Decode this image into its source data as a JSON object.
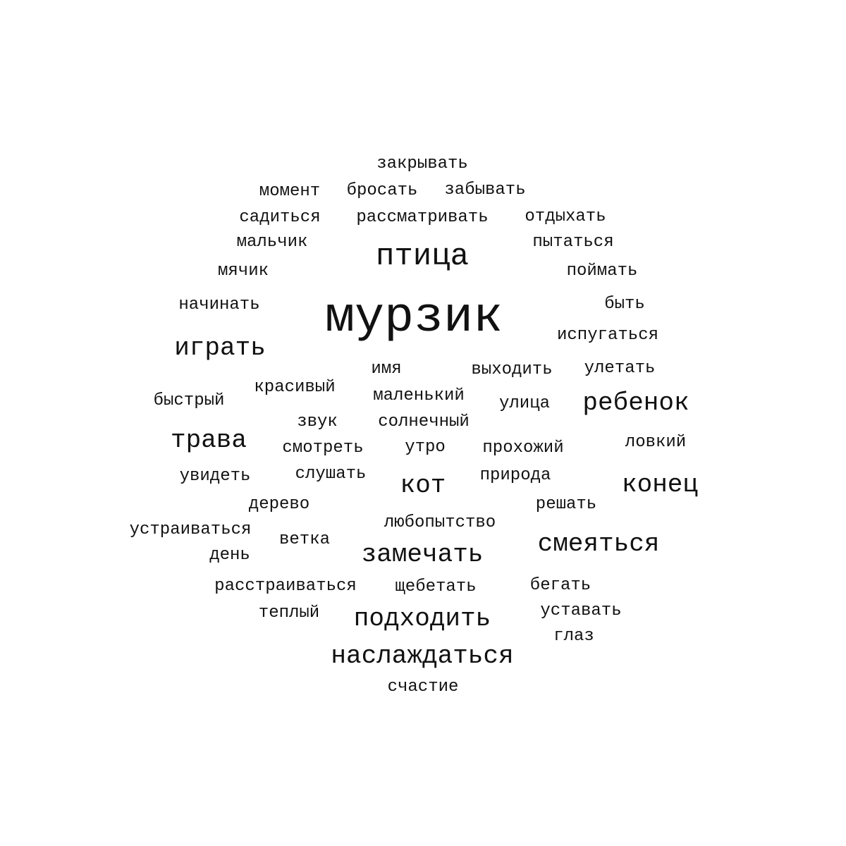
{
  "words": [
    "закрывать",
    "момент",
    "бросать",
    "забывать",
    "садиться",
    "рассматривать",
    "отдыхать",
    "мальчик",
    "птица",
    "пытаться",
    "мячик",
    "поймать",
    "начинать",
    "мурзик",
    "быть",
    "играть",
    "испугаться",
    "имя",
    "выходить",
    "улетать",
    "красивый",
    "быстрый",
    "маленький",
    "улица",
    "ребенок",
    "звук",
    "солнечный",
    "трава",
    "смотреть",
    "утро",
    "прохожий",
    "ловкий",
    "увидеть",
    "слушать",
    "кот",
    "природа",
    "конец",
    "дерево",
    "решать",
    "любопытство",
    "устраиваться",
    "ветка",
    "смеяться",
    "день",
    "замечать",
    "расстраиваться",
    "щебетать",
    "бегать",
    "теплый",
    "подходить",
    "уставать",
    "глаз",
    "наслаждаться",
    "счастие"
  ]
}
